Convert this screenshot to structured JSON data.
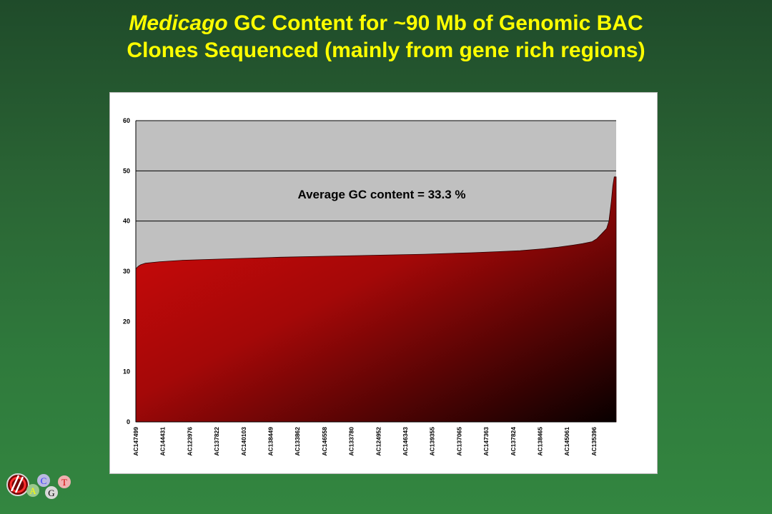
{
  "title": {
    "italic_part": "Medicago",
    "line1_rest": " GC Content for ~90 Mb of Genomic BAC",
    "line2": "Clones Sequenced (mainly from gene rich regions)"
  },
  "colors": {
    "background": "#2a6434",
    "title": "#ffff00",
    "plot_area": "#c0c0c0",
    "fill_light": "#d60a0a",
    "fill_dark": "#080000"
  },
  "logo": {
    "letters": [
      "A",
      "C",
      "G",
      "T"
    ]
  },
  "chart_data": {
    "type": "area",
    "annotation": "Average GC content = 33.3 %",
    "xlabel": "",
    "ylabel": "",
    "ylim": [
      0,
      60
    ],
    "yticks": [
      0,
      10,
      20,
      30,
      40,
      50,
      60
    ],
    "gridlines_y": [
      30,
      40,
      50,
      60
    ],
    "x_tick_labels": [
      "AC147499",
      "AC144431",
      "AC123976",
      "AC137822",
      "AC140103",
      "AC138449",
      "AC133862",
      "AC146558",
      "AC133780",
      "AC124952",
      "AC146343",
      "AC139355",
      "AC137065",
      "AC147363",
      "AC137824",
      "AC138465",
      "AC145061",
      "AC135396"
    ],
    "x": [
      0,
      0.005,
      0.01,
      0.02,
      0.05,
      0.1,
      0.2,
      0.3,
      0.4,
      0.5,
      0.6,
      0.7,
      0.75,
      0.8,
      0.85,
      0.88,
      0.91,
      0.93,
      0.95,
      0.96,
      0.97,
      0.98,
      0.985,
      0.99,
      0.993,
      0.996,
      1.0
    ],
    "values": [
      30.5,
      31.0,
      31.3,
      31.6,
      31.9,
      32.2,
      32.5,
      32.8,
      33.0,
      33.2,
      33.4,
      33.7,
      33.9,
      34.1,
      34.5,
      34.8,
      35.2,
      35.5,
      35.9,
      36.5,
      37.5,
      38.5,
      40,
      44,
      47,
      48.8,
      48.8
    ],
    "series": [
      {
        "values_ref": "values"
      }
    ]
  }
}
